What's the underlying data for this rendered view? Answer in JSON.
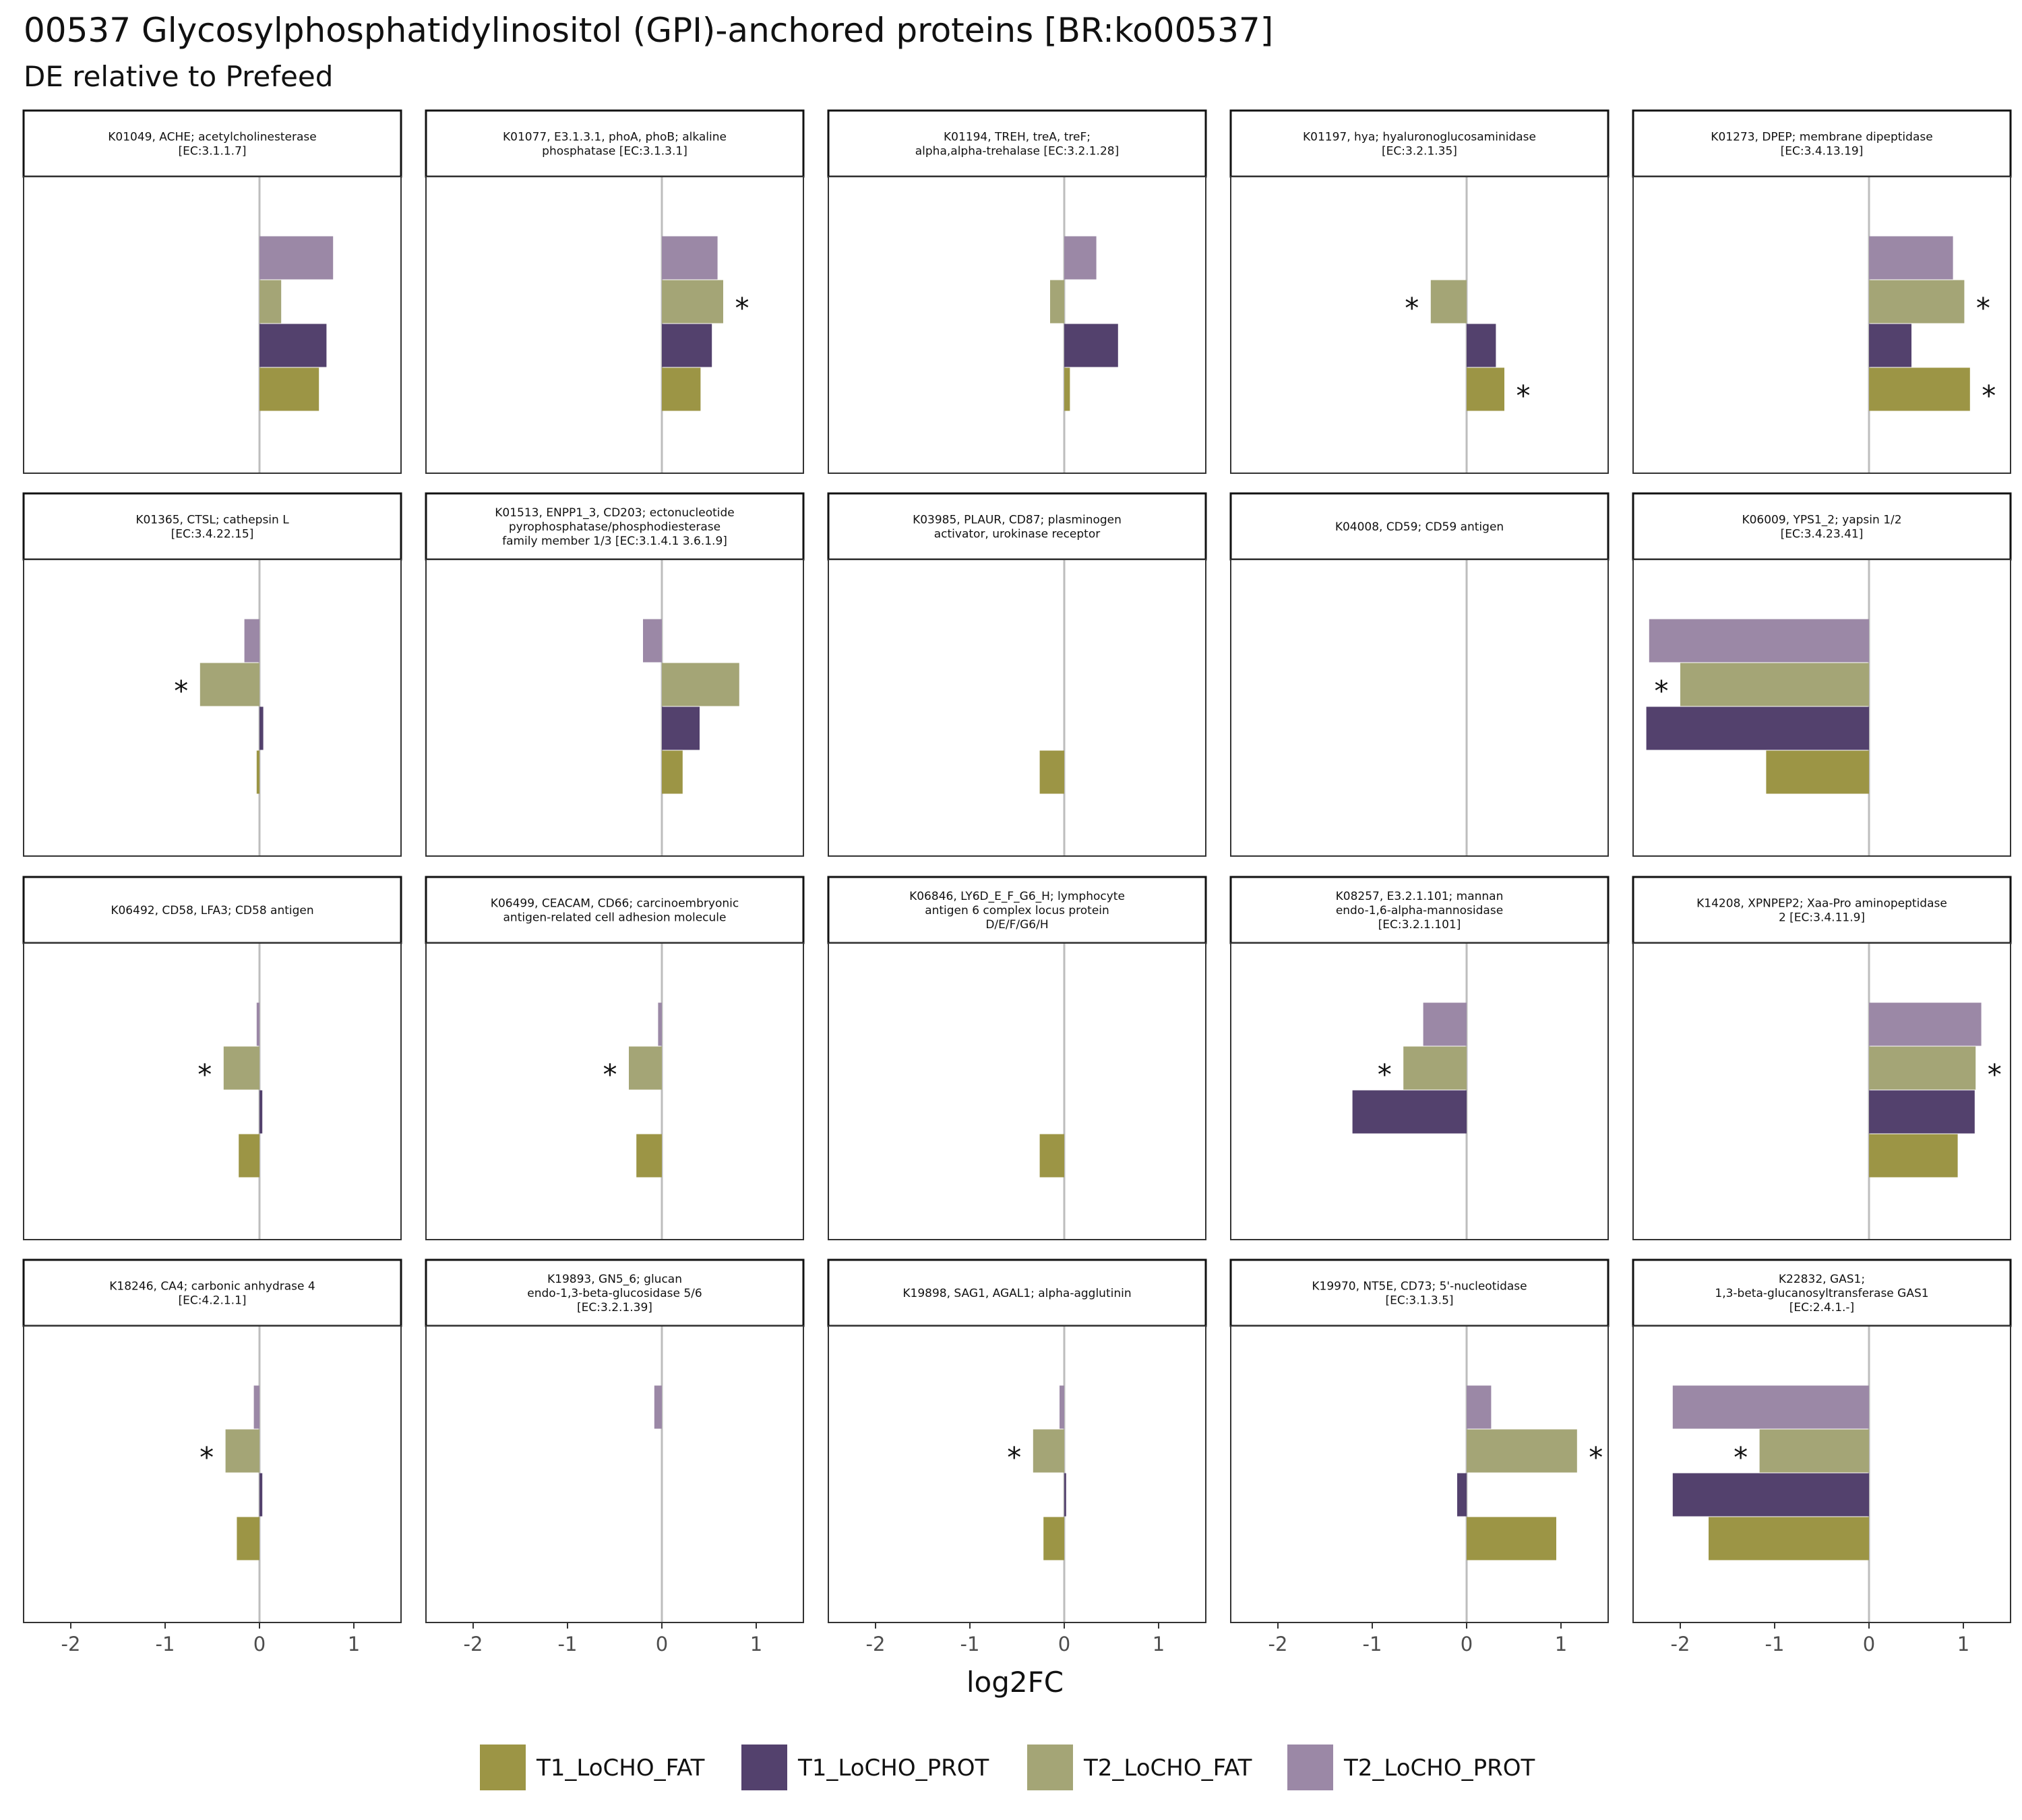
{
  "title": "00537 Glycosylphosphatidylinositol (GPI)-anchored proteins [BR:ko00537]",
  "subtitle": "DE relative to Prefeed",
  "chart_data": {
    "type": "bar",
    "orientation": "horizontal",
    "facet_grid": {
      "rows": 4,
      "cols": 5
    },
    "xlabel": "log2FC",
    "xlim": [
      -2.5,
      1.5
    ],
    "xticks": [
      -2,
      -1,
      0,
      1
    ],
    "xtick_labels": [
      "-2",
      "-1",
      "0",
      "1"
    ],
    "grid": false,
    "legend_position": "bottom",
    "series": [
      {
        "name": "T1_LoCHO_FAT",
        "color": "#9c9545"
      },
      {
        "name": "T1_LoCHO_PROT",
        "color": "#53416d"
      },
      {
        "name": "T2_LoCHO_FAT",
        "color": "#a4a576"
      },
      {
        "name": "T2_LoCHO_PROT",
        "color": "#9b88a6"
      }
    ],
    "panels": [
      {
        "label": [
          "K01049, ACHE; acetylcholinesterase",
          "[EC:3.1.1.7]"
        ],
        "values": [
          0.63,
          0.71,
          0.23,
          0.78
        ],
        "significant": [
          false,
          false,
          false,
          false
        ]
      },
      {
        "label": [
          "K01077, E3.1.3.1, phoA, phoB; alkaline",
          "phosphatase [EC:3.1.3.1]"
        ],
        "values": [
          0.41,
          0.53,
          0.65,
          0.59
        ],
        "significant": [
          false,
          false,
          true,
          false
        ]
      },
      {
        "label": [
          "K01194, TREH, treA, treF;",
          "alpha,alpha-trehalase [EC:3.2.1.28]"
        ],
        "values": [
          0.06,
          0.57,
          -0.15,
          0.34
        ],
        "significant": [
          false,
          false,
          false,
          false
        ]
      },
      {
        "label": [
          "K01197, hya; hyaluronoglucosaminidase",
          "[EC:3.2.1.35]"
        ],
        "values": [
          0.4,
          0.31,
          -0.38,
          null
        ],
        "significant": [
          true,
          false,
          true,
          false
        ]
      },
      {
        "label": [
          "K01273, DPEP; membrane dipeptidase",
          "[EC:3.4.13.19]"
        ],
        "values": [
          1.07,
          0.45,
          1.01,
          0.89
        ],
        "significant": [
          true,
          false,
          true,
          false
        ]
      },
      {
        "label": [
          "K01365, CTSL; cathepsin L",
          "[EC:3.4.22.15]"
        ],
        "values": [
          -0.03,
          0.04,
          -0.63,
          -0.16
        ],
        "significant": [
          false,
          false,
          true,
          false
        ]
      },
      {
        "label": [
          "K01513, ENPP1_3, CD203; ectonucleotide",
          "pyrophosphatase/phosphodiesterase",
          "family member 1/3 [EC:3.1.4.1 3.6.1.9]"
        ],
        "values": [
          0.22,
          0.4,
          0.82,
          -0.2
        ],
        "significant": [
          false,
          false,
          false,
          false
        ]
      },
      {
        "label": [
          "K03985, PLAUR, CD87; plasminogen",
          "activator, urokinase receptor"
        ],
        "values": [
          -0.26,
          null,
          null,
          null
        ],
        "significant": [
          false,
          false,
          false,
          false
        ]
      },
      {
        "label": [
          "K04008, CD59; CD59 antigen"
        ],
        "values": [
          null,
          null,
          null,
          null
        ],
        "significant": [
          false,
          false,
          false,
          false
        ]
      },
      {
        "label": [
          "K06009, YPS1_2; yapsin 1/2",
          "[EC:3.4.23.41]"
        ],
        "values": [
          -1.09,
          -2.36,
          -2.0,
          -2.33
        ],
        "significant": [
          false,
          false,
          true,
          false
        ]
      },
      {
        "label": [
          "K06492, CD58, LFA3; CD58 antigen"
        ],
        "values": [
          -0.22,
          0.03,
          -0.38,
          -0.03
        ],
        "significant": [
          false,
          false,
          true,
          false
        ]
      },
      {
        "label": [
          "K06499, CEACAM, CD66; carcinoembryonic",
          "antigen-related cell adhesion molecule"
        ],
        "values": [
          -0.27,
          null,
          -0.35,
          -0.04
        ],
        "significant": [
          false,
          false,
          true,
          false
        ]
      },
      {
        "label": [
          "K06846, LY6D_E_F_G6_H; lymphocyte",
          "antigen 6 complex locus protein",
          "D/E/F/G6/H"
        ],
        "values": [
          -0.26,
          null,
          null,
          null
        ],
        "significant": [
          false,
          false,
          false,
          false
        ]
      },
      {
        "label": [
          "K08257, E3.2.1.101; mannan",
          "endo-1,6-alpha-mannosidase",
          "[EC:3.2.1.101]"
        ],
        "values": [
          null,
          -1.21,
          -0.67,
          -0.46
        ],
        "significant": [
          false,
          false,
          true,
          false
        ]
      },
      {
        "label": [
          "K14208, XPNPEP2; Xaa-Pro aminopeptidase",
          "2 [EC:3.4.11.9]"
        ],
        "values": [
          0.94,
          1.12,
          1.13,
          1.19
        ],
        "significant": [
          false,
          false,
          true,
          false
        ]
      },
      {
        "label": [
          "K18246, CA4; carbonic anhydrase 4",
          "[EC:4.2.1.1]"
        ],
        "values": [
          -0.24,
          0.03,
          -0.36,
          -0.06
        ],
        "significant": [
          false,
          false,
          true,
          false
        ]
      },
      {
        "label": [
          "K19893, GN5_6; glucan",
          "endo-1,3-beta-glucosidase 5/6",
          "[EC:3.2.1.39]"
        ],
        "values": [
          null,
          null,
          null,
          -0.08
        ],
        "significant": [
          false,
          false,
          false,
          false
        ]
      },
      {
        "label": [
          "K19898, SAG1, AGAL1; alpha-agglutinin"
        ],
        "values": [
          -0.22,
          0.02,
          -0.33,
          -0.05
        ],
        "significant": [
          false,
          false,
          true,
          false
        ]
      },
      {
        "label": [
          "K19970, NT5E, CD73; 5'-nucleotidase",
          "[EC:3.1.3.5]"
        ],
        "values": [
          0.95,
          -0.1,
          1.17,
          0.26
        ],
        "significant": [
          false,
          false,
          true,
          false
        ]
      },
      {
        "label": [
          "K22832, GAS1;",
          "1,3-beta-glucanosyltransferase GAS1",
          "[EC:2.4.1.-]"
        ],
        "values": [
          -1.7,
          -2.08,
          -1.16,
          -2.08
        ],
        "significant": [
          false,
          false,
          true,
          false
        ]
      }
    ],
    "significance_marker": "*"
  }
}
